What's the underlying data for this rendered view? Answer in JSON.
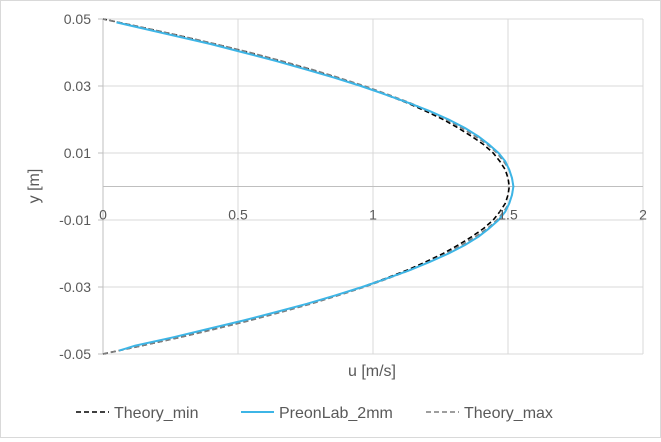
{
  "chart_data": {
    "type": "scatter",
    "title": "",
    "xlabel": "u [m/s]",
    "ylabel": "y [m]",
    "xlim": [
      0,
      2
    ],
    "ylim": [
      -0.05,
      0.05
    ],
    "x_ticks": [
      "0",
      "0.5",
      "1",
      "1.5",
      "2"
    ],
    "y_ticks": [
      "-0.05",
      "-0.03",
      "-0.01",
      "0.01",
      "0.03",
      "0.05"
    ],
    "grid": true,
    "legend_position": "bottom",
    "series": [
      {
        "name": "Theory_min",
        "color": "#000000",
        "dash": "dashed",
        "points": [
          {
            "x": 0.0,
            "y": -0.05
          },
          {
            "x": 0.145,
            "y": -0.0475
          },
          {
            "x": 0.285,
            "y": -0.045
          },
          {
            "x": 0.415,
            "y": -0.0425
          },
          {
            "x": 0.54,
            "y": -0.04
          },
          {
            "x": 0.655,
            "y": -0.0375
          },
          {
            "x": 0.765,
            "y": -0.035
          },
          {
            "x": 0.865,
            "y": -0.0325
          },
          {
            "x": 0.96,
            "y": -0.03
          },
          {
            "x": 1.045,
            "y": -0.0275
          },
          {
            "x": 1.125,
            "y": -0.025
          },
          {
            "x": 1.195,
            "y": -0.0225
          },
          {
            "x": 1.26,
            "y": -0.02
          },
          {
            "x": 1.315,
            "y": -0.0175
          },
          {
            "x": 1.365,
            "y": -0.015
          },
          {
            "x": 1.41,
            "y": -0.0125
          },
          {
            "x": 1.445,
            "y": -0.01
          },
          {
            "x": 1.47,
            "y": -0.0075
          },
          {
            "x": 1.49,
            "y": -0.005
          },
          {
            "x": 1.5,
            "y": -0.0025
          },
          {
            "x": 1.505,
            "y": 0.0
          },
          {
            "x": 1.5,
            "y": 0.0025
          },
          {
            "x": 1.49,
            "y": 0.005
          },
          {
            "x": 1.47,
            "y": 0.0075
          },
          {
            "x": 1.445,
            "y": 0.01
          },
          {
            "x": 1.41,
            "y": 0.0125
          },
          {
            "x": 1.365,
            "y": 0.015
          },
          {
            "x": 1.315,
            "y": 0.0175
          },
          {
            "x": 1.26,
            "y": 0.02
          },
          {
            "x": 1.195,
            "y": 0.0225
          },
          {
            "x": 1.125,
            "y": 0.025
          },
          {
            "x": 1.045,
            "y": 0.0275
          },
          {
            "x": 0.96,
            "y": 0.03
          },
          {
            "x": 0.865,
            "y": 0.0325
          },
          {
            "x": 0.765,
            "y": 0.035
          },
          {
            "x": 0.655,
            "y": 0.0375
          },
          {
            "x": 0.54,
            "y": 0.04
          },
          {
            "x": 0.415,
            "y": 0.0425
          },
          {
            "x": 0.285,
            "y": 0.045
          },
          {
            "x": 0.145,
            "y": 0.0475
          },
          {
            "x": 0.0,
            "y": 0.05
          }
        ]
      },
      {
        "name": "PreonLab_2mm",
        "color": "#3db5e6",
        "dash": "solid",
        "points": [
          {
            "x": 0.06,
            "y": -0.049
          },
          {
            "x": 0.12,
            "y": -0.0475
          },
          {
            "x": 0.26,
            "y": -0.045
          },
          {
            "x": 0.39,
            "y": -0.0425
          },
          {
            "x": 0.52,
            "y": -0.04
          },
          {
            "x": 0.64,
            "y": -0.0375
          },
          {
            "x": 0.755,
            "y": -0.035
          },
          {
            "x": 0.86,
            "y": -0.0325
          },
          {
            "x": 0.96,
            "y": -0.03
          },
          {
            "x": 1.05,
            "y": -0.0275
          },
          {
            "x": 1.135,
            "y": -0.025
          },
          {
            "x": 1.21,
            "y": -0.0225
          },
          {
            "x": 1.28,
            "y": -0.02
          },
          {
            "x": 1.34,
            "y": -0.0175
          },
          {
            "x": 1.39,
            "y": -0.015
          },
          {
            "x": 1.43,
            "y": -0.0125
          },
          {
            "x": 1.465,
            "y": -0.01
          },
          {
            "x": 1.49,
            "y": -0.0075
          },
          {
            "x": 1.505,
            "y": -0.005
          },
          {
            "x": 1.515,
            "y": -0.0025
          },
          {
            "x": 1.52,
            "y": 0.0
          },
          {
            "x": 1.515,
            "y": 0.0025
          },
          {
            "x": 1.505,
            "y": 0.005
          },
          {
            "x": 1.49,
            "y": 0.0075
          },
          {
            "x": 1.465,
            "y": 0.01
          },
          {
            "x": 1.43,
            "y": 0.0125
          },
          {
            "x": 1.39,
            "y": 0.015
          },
          {
            "x": 1.34,
            "y": 0.0175
          },
          {
            "x": 1.28,
            "y": 0.02
          },
          {
            "x": 1.21,
            "y": 0.0225
          },
          {
            "x": 1.13,
            "y": 0.025
          },
          {
            "x": 1.045,
            "y": 0.0275
          },
          {
            "x": 0.955,
            "y": 0.03
          },
          {
            "x": 0.855,
            "y": 0.0325
          },
          {
            "x": 0.75,
            "y": 0.035
          },
          {
            "x": 0.64,
            "y": 0.0375
          },
          {
            "x": 0.52,
            "y": 0.04
          },
          {
            "x": 0.4,
            "y": 0.0425
          },
          {
            "x": 0.265,
            "y": 0.045
          },
          {
            "x": 0.13,
            "y": 0.0475
          },
          {
            "x": 0.05,
            "y": 0.049
          }
        ]
      },
      {
        "name": "Theory_max",
        "color": "#7f7f7f",
        "dash": "dashed",
        "points": [
          {
            "x": 0.0,
            "y": -0.05
          },
          {
            "x": 0.146,
            "y": -0.0475
          },
          {
            "x": 0.287,
            "y": -0.045
          },
          {
            "x": 0.419,
            "y": -0.0425
          },
          {
            "x": 0.545,
            "y": -0.04
          },
          {
            "x": 0.661,
            "y": -0.0375
          },
          {
            "x": 0.772,
            "y": -0.035
          },
          {
            "x": 0.873,
            "y": -0.0325
          },
          {
            "x": 0.969,
            "y": -0.03
          },
          {
            "x": 1.055,
            "y": -0.0275
          },
          {
            "x": 1.136,
            "y": -0.025
          },
          {
            "x": 1.206,
            "y": -0.0225
          },
          {
            "x": 1.272,
            "y": -0.02
          },
          {
            "x": 1.328,
            "y": -0.0175
          },
          {
            "x": 1.378,
            "y": -0.015
          },
          {
            "x": 1.424,
            "y": -0.0125
          },
          {
            "x": 1.459,
            "y": -0.01
          },
          {
            "x": 1.484,
            "y": -0.0075
          },
          {
            "x": 1.504,
            "y": -0.005
          },
          {
            "x": 1.515,
            "y": -0.0025
          },
          {
            "x": 1.52,
            "y": 0.0
          },
          {
            "x": 1.515,
            "y": 0.0025
          },
          {
            "x": 1.504,
            "y": 0.005
          },
          {
            "x": 1.484,
            "y": 0.0075
          },
          {
            "x": 1.459,
            "y": 0.01
          },
          {
            "x": 1.424,
            "y": 0.0125
          },
          {
            "x": 1.378,
            "y": 0.015
          },
          {
            "x": 1.328,
            "y": 0.0175
          },
          {
            "x": 1.272,
            "y": 0.02
          },
          {
            "x": 1.206,
            "y": 0.0225
          },
          {
            "x": 1.136,
            "y": 0.025
          },
          {
            "x": 1.055,
            "y": 0.0275
          },
          {
            "x": 0.969,
            "y": 0.03
          },
          {
            "x": 0.873,
            "y": 0.0325
          },
          {
            "x": 0.772,
            "y": 0.035
          },
          {
            "x": 0.661,
            "y": 0.0375
          },
          {
            "x": 0.545,
            "y": 0.04
          },
          {
            "x": 0.419,
            "y": 0.0425
          },
          {
            "x": 0.287,
            "y": 0.045
          },
          {
            "x": 0.146,
            "y": 0.0475
          },
          {
            "x": 0.0,
            "y": 0.05
          }
        ]
      }
    ]
  }
}
